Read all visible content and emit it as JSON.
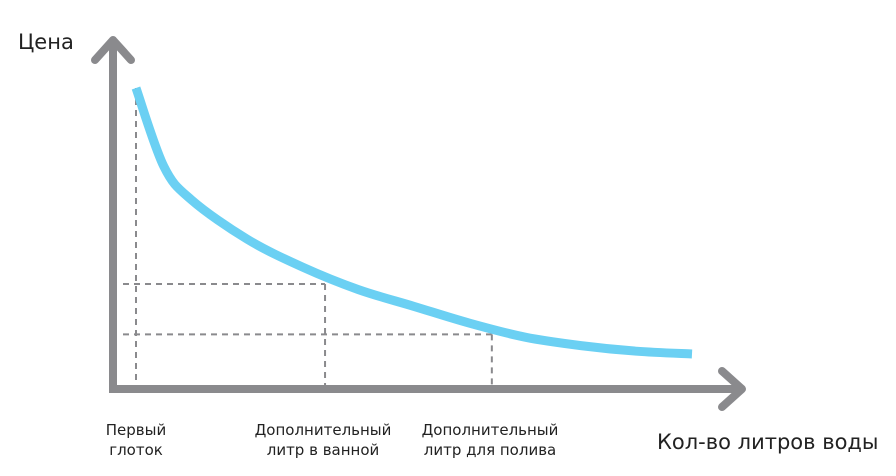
{
  "chart_data": {
    "type": "line",
    "ylabel": "Цена",
    "xlabel": "Кол-во литров воды",
    "series": [
      {
        "x": [
          0.0,
          0.05,
          0.1,
          0.2,
          0.3,
          0.4,
          0.5,
          0.6,
          0.7,
          0.8,
          0.9,
          1.0
        ],
        "y": [
          1.0,
          0.72,
          0.6,
          0.46,
          0.36,
          0.28,
          0.22,
          0.16,
          0.11,
          0.08,
          0.06,
          0.05
        ]
      }
    ],
    "markers": [
      {
        "x": 0.0,
        "y": 1.0,
        "label": "Первый\nглоток"
      },
      {
        "x": 0.34,
        "y": 0.3,
        "label": "Дополнительный\nлитр в ванной"
      },
      {
        "x": 0.64,
        "y": 0.12,
        "label": "Дополнительный\nлитр для полива"
      }
    ],
    "xlim": [
      0,
      1
    ],
    "ylim": [
      0,
      1
    ],
    "grid": false,
    "colors": {
      "curve": "#6bd0f3",
      "axes": "#8a8a8d",
      "guides": "#8a8a8d"
    }
  }
}
